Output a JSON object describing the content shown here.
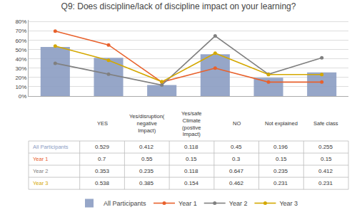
{
  "chart_data": {
    "type": "bar",
    "title": "Q9: Does discipline/lack of discipline impact on your learning?",
    "categories": [
      "YES",
      "Yes/disruption(\nnegative\nImpact)",
      "Yes/safe\nClimate\n(postive\nImpact)",
      "NO",
      "Not explained",
      "Safe class"
    ],
    "series": [
      {
        "name": "All Participants",
        "type": "bar",
        "color": "#8B9DC3",
        "values": [
          0.529,
          0.412,
          0.118,
          0.45,
          0.196,
          0.255
        ]
      },
      {
        "name": "Year 1",
        "type": "line",
        "color": "#E8612C",
        "marker": "circle",
        "values": [
          0.7,
          0.55,
          0.15,
          0.3,
          0.15,
          0.15
        ]
      },
      {
        "name": "Year 2",
        "type": "line",
        "color": "#808080",
        "marker": "circle",
        "values": [
          0.353,
          0.235,
          0.118,
          0.647,
          0.235,
          0.412
        ]
      },
      {
        "name": "Year 3",
        "type": "line",
        "color": "#D4A800",
        "marker": "circle",
        "values": [
          0.538,
          0.385,
          0.154,
          0.462,
          0.231,
          0.231
        ]
      }
    ],
    "ylim": [
      0,
      0.82
    ],
    "yticks": [
      {
        "value": 0.0,
        "label": "0%"
      },
      {
        "value": 0.1,
        "label": "10%"
      },
      {
        "value": 0.2,
        "label": "20%"
      },
      {
        "value": 0.3,
        "label": "30%"
      },
      {
        "value": 0.4,
        "label": "40%"
      },
      {
        "value": 0.5,
        "label": "50%"
      },
      {
        "value": 0.6,
        "label": "60%"
      },
      {
        "value": 0.7,
        "label": "70%"
      },
      {
        "value": 0.8,
        "label": "80%"
      }
    ],
    "grid": true,
    "legend": "bottom",
    "tick_labels": "y"
  }
}
